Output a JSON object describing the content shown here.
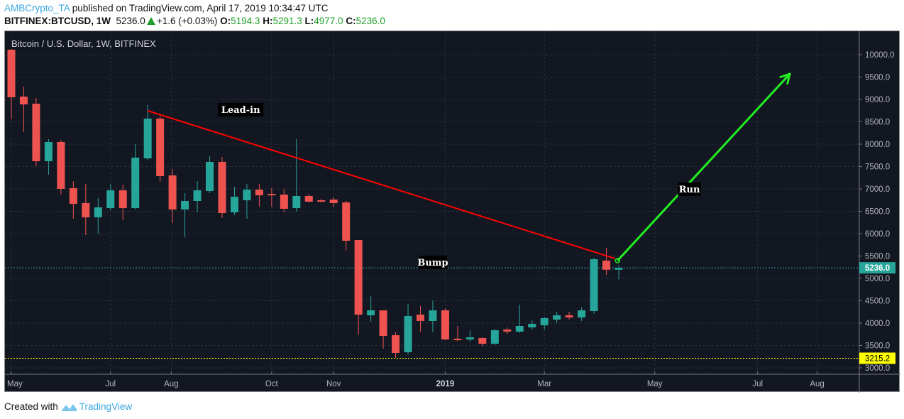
{
  "header": {
    "author": "AMBCrypto_TA",
    "published": "published on TradingView.com, April 17, 2019 10:34:47 UTC",
    "symbol": "BITFINEX:BTCUSD, 1W",
    "last": "5236.0",
    "change": "+1.6 (+0.03%)",
    "o_label": "O:",
    "o": "5194.3",
    "h_label": "H:",
    "h": "5291.3",
    "l_label": "L:",
    "l": "4977.0",
    "c_label": "C:",
    "c": "5236.0"
  },
  "legend": "Bitcoin / U.S. Dollar, 1W, BITFINEX",
  "footer": {
    "created": "Created with",
    "brand": "TradingView"
  },
  "colors": {
    "up": "#26a69a",
    "down": "#ef5350",
    "bg": "#131722",
    "trend": "#ff0000",
    "arrow": "#22ee22",
    "low_line": "#ffff00"
  },
  "chart_data": {
    "type": "candlestick",
    "title": "Bitcoin / U.S. Dollar, 1W, BITFINEX",
    "ylim": [
      2850,
      10450
    ],
    "xlim": [
      -0.5,
      68.5
    ],
    "y_ticks": [
      "3000.0",
      "3500.0",
      "4000.0",
      "4500.0",
      "5000.0",
      "5500.0",
      "6000.0",
      "6500.0",
      "7000.0",
      "7500.0",
      "8000.0",
      "8500.0",
      "9000.0",
      "9500.0",
      "10000.0"
    ],
    "x_ticks": [
      {
        "label": "May",
        "week": 0
      },
      {
        "label": "Jul",
        "week": 8
      },
      {
        "label": "Aug",
        "week": 12.9
      },
      {
        "label": "Oct",
        "week": 21
      },
      {
        "label": "Nov",
        "week": 26
      },
      {
        "label": "2019",
        "week": 35,
        "bold": true
      },
      {
        "label": "Mar",
        "week": 43
      },
      {
        "label": "May",
        "week": 51.9
      },
      {
        "label": "Jul",
        "week": 60.2
      },
      {
        "label": "Aug",
        "week": 65
      }
    ],
    "ohlc": [
      [
        10111,
        10127,
        8556,
        9048
      ],
      [
        9063,
        9286,
        8270,
        8889
      ],
      [
        8905,
        9032,
        7508,
        7619
      ],
      [
        7619,
        8111,
        7317,
        8048
      ],
      [
        8048,
        8095,
        6873,
        7000
      ],
      [
        7016,
        7175,
        6333,
        6667
      ],
      [
        6683,
        7111,
        5970,
        6365
      ],
      [
        6365,
        6794,
        6000,
        6587
      ],
      [
        6571,
        7111,
        6524,
        6968
      ],
      [
        6968,
        7095,
        6302,
        6571
      ],
      [
        6571,
        8000,
        6540,
        7698
      ],
      [
        7683,
        8873,
        7650,
        8571
      ],
      [
        8571,
        8619,
        7159,
        7286
      ],
      [
        7302,
        7444,
        6238,
        6540
      ],
      [
        6540,
        6905,
        5920,
        6730
      ],
      [
        6730,
        7175,
        6476,
        6968
      ],
      [
        6952,
        7730,
        6905,
        7603
      ],
      [
        7603,
        7714,
        6349,
        6460
      ],
      [
        6476,
        7048,
        6413,
        6825
      ],
      [
        6746,
        7111,
        6333,
        6984
      ],
      [
        6984,
        7111,
        6603,
        6857
      ],
      [
        6889,
        7016,
        6603,
        6857
      ],
      [
        6873,
        7000,
        6476,
        6556
      ],
      [
        6571,
        8111,
        6492,
        6841
      ],
      [
        6841,
        6889,
        6698,
        6714
      ],
      [
        6746,
        6780,
        6690,
        6714
      ],
      [
        6762,
        6825,
        6603,
        6683
      ],
      [
        6698,
        6730,
        5619,
        5841
      ],
      [
        5857,
        5857,
        3746,
        4190
      ],
      [
        4175,
        4603,
        4032,
        4286
      ],
      [
        4286,
        4286,
        3429,
        3714
      ],
      [
        3730,
        3794,
        3222,
        3333
      ],
      [
        3349,
        4429,
        3302,
        4159
      ],
      [
        4190,
        4381,
        3810,
        4048
      ],
      [
        4048,
        4508,
        3794,
        4286
      ],
      [
        4286,
        4333,
        3619,
        3635
      ],
      [
        3651,
        3937,
        3587,
        3619
      ],
      [
        3635,
        3841,
        3587,
        3683
      ],
      [
        3667,
        3683,
        3492,
        3540
      ],
      [
        3540,
        3873,
        3508,
        3841
      ],
      [
        3857,
        3905,
        3762,
        3810
      ],
      [
        3810,
        4413,
        3778,
        3937
      ],
      [
        3905,
        4063,
        3857,
        3984
      ],
      [
        3952,
        4143,
        3857,
        4111
      ],
      [
        4079,
        4254,
        4000,
        4175
      ],
      [
        4175,
        4254,
        4079,
        4127
      ],
      [
        4127,
        4349,
        4048,
        4286
      ],
      [
        4270,
        5460,
        4206,
        5429
      ],
      [
        5397,
        5683,
        5079,
        5194
      ],
      [
        5194.3,
        5291.3,
        4977.0,
        5236.0
      ]
    ],
    "price_lines": [
      {
        "label": "5236.0",
        "value": 5236.0,
        "color": "#26a69a"
      },
      {
        "label": "3215.2",
        "value": 3215.2,
        "color": "#ffff00"
      }
    ],
    "annotations": [
      {
        "type": "trendline",
        "from": [
          11,
          8746
        ],
        "to": [
          48.7,
          5444
        ],
        "color": "#ff0000"
      },
      {
        "type": "arrow",
        "from": [
          48.9,
          5397
        ],
        "to": [
          62.8,
          9571
        ],
        "color": "#22ee22"
      },
      {
        "type": "text",
        "text": "Lead-in",
        "week": 18.5,
        "price": 8760
      },
      {
        "type": "text",
        "text": "Bump",
        "week": 34,
        "price": 5350
      },
      {
        "type": "text",
        "text": "Run",
        "week": 54.7,
        "price": 6985
      }
    ]
  }
}
